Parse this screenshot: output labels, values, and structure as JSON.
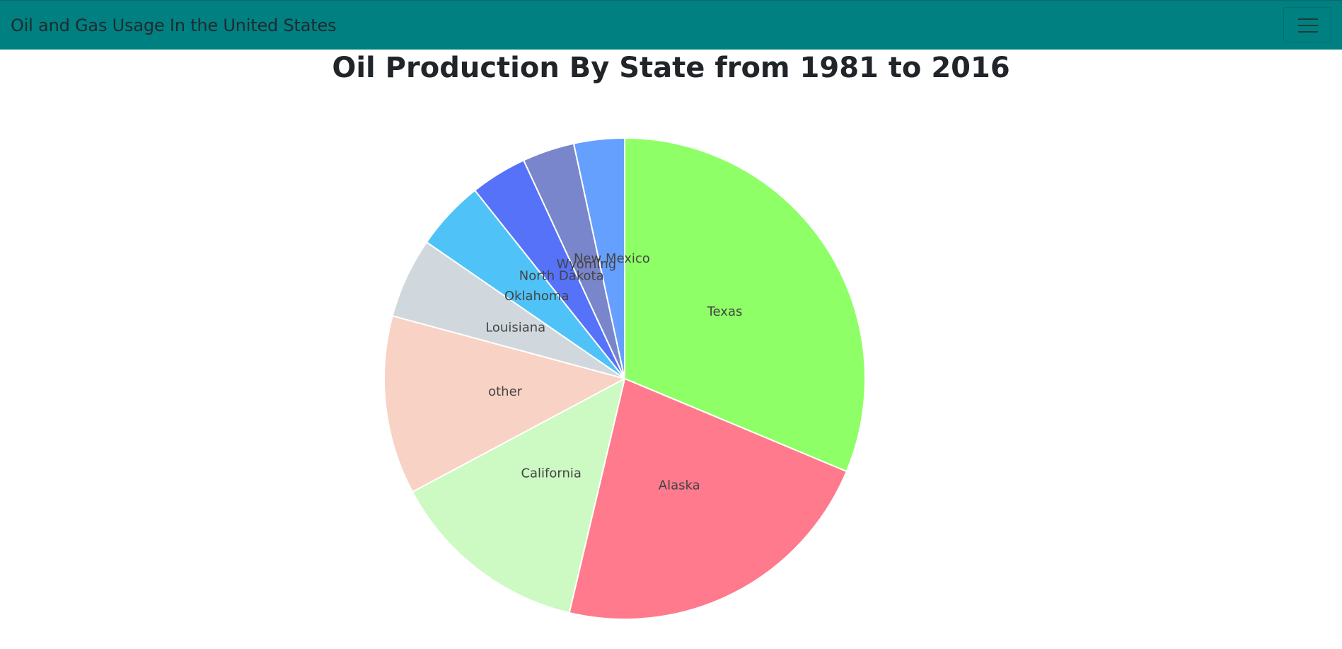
{
  "navbar": {
    "brand": "Oil and Gas Usage In the United States",
    "toggle_icon": "hamburger-menu-icon"
  },
  "colors": {
    "navbar_bg": "#008080"
  },
  "chart_data": {
    "type": "pie",
    "title": "Oil Production By State from 1981 to 2016",
    "slices": [
      {
        "label": "Texas",
        "value": 31.3,
        "color": "#8eff66"
      },
      {
        "label": "Alaska",
        "value": 22.4,
        "color": "#fe7a8c"
      },
      {
        "label": "California",
        "value": 13.5,
        "color": "#cdf9c3"
      },
      {
        "label": "other",
        "value": 12.0,
        "color": "#f8d2c4"
      },
      {
        "label": "Louisiana",
        "value": 5.4,
        "color": "#d0d8dd"
      },
      {
        "label": "Oklahoma",
        "value": 4.7,
        "color": "#4fc3f7"
      },
      {
        "label": "North Dakota",
        "value": 3.8,
        "color": "#5672f8"
      },
      {
        "label": "Wyoming",
        "value": 3.5,
        "color": "#7986cb"
      },
      {
        "label": "New Mexico",
        "value": 3.4,
        "color": "#66a0ff"
      }
    ]
  }
}
